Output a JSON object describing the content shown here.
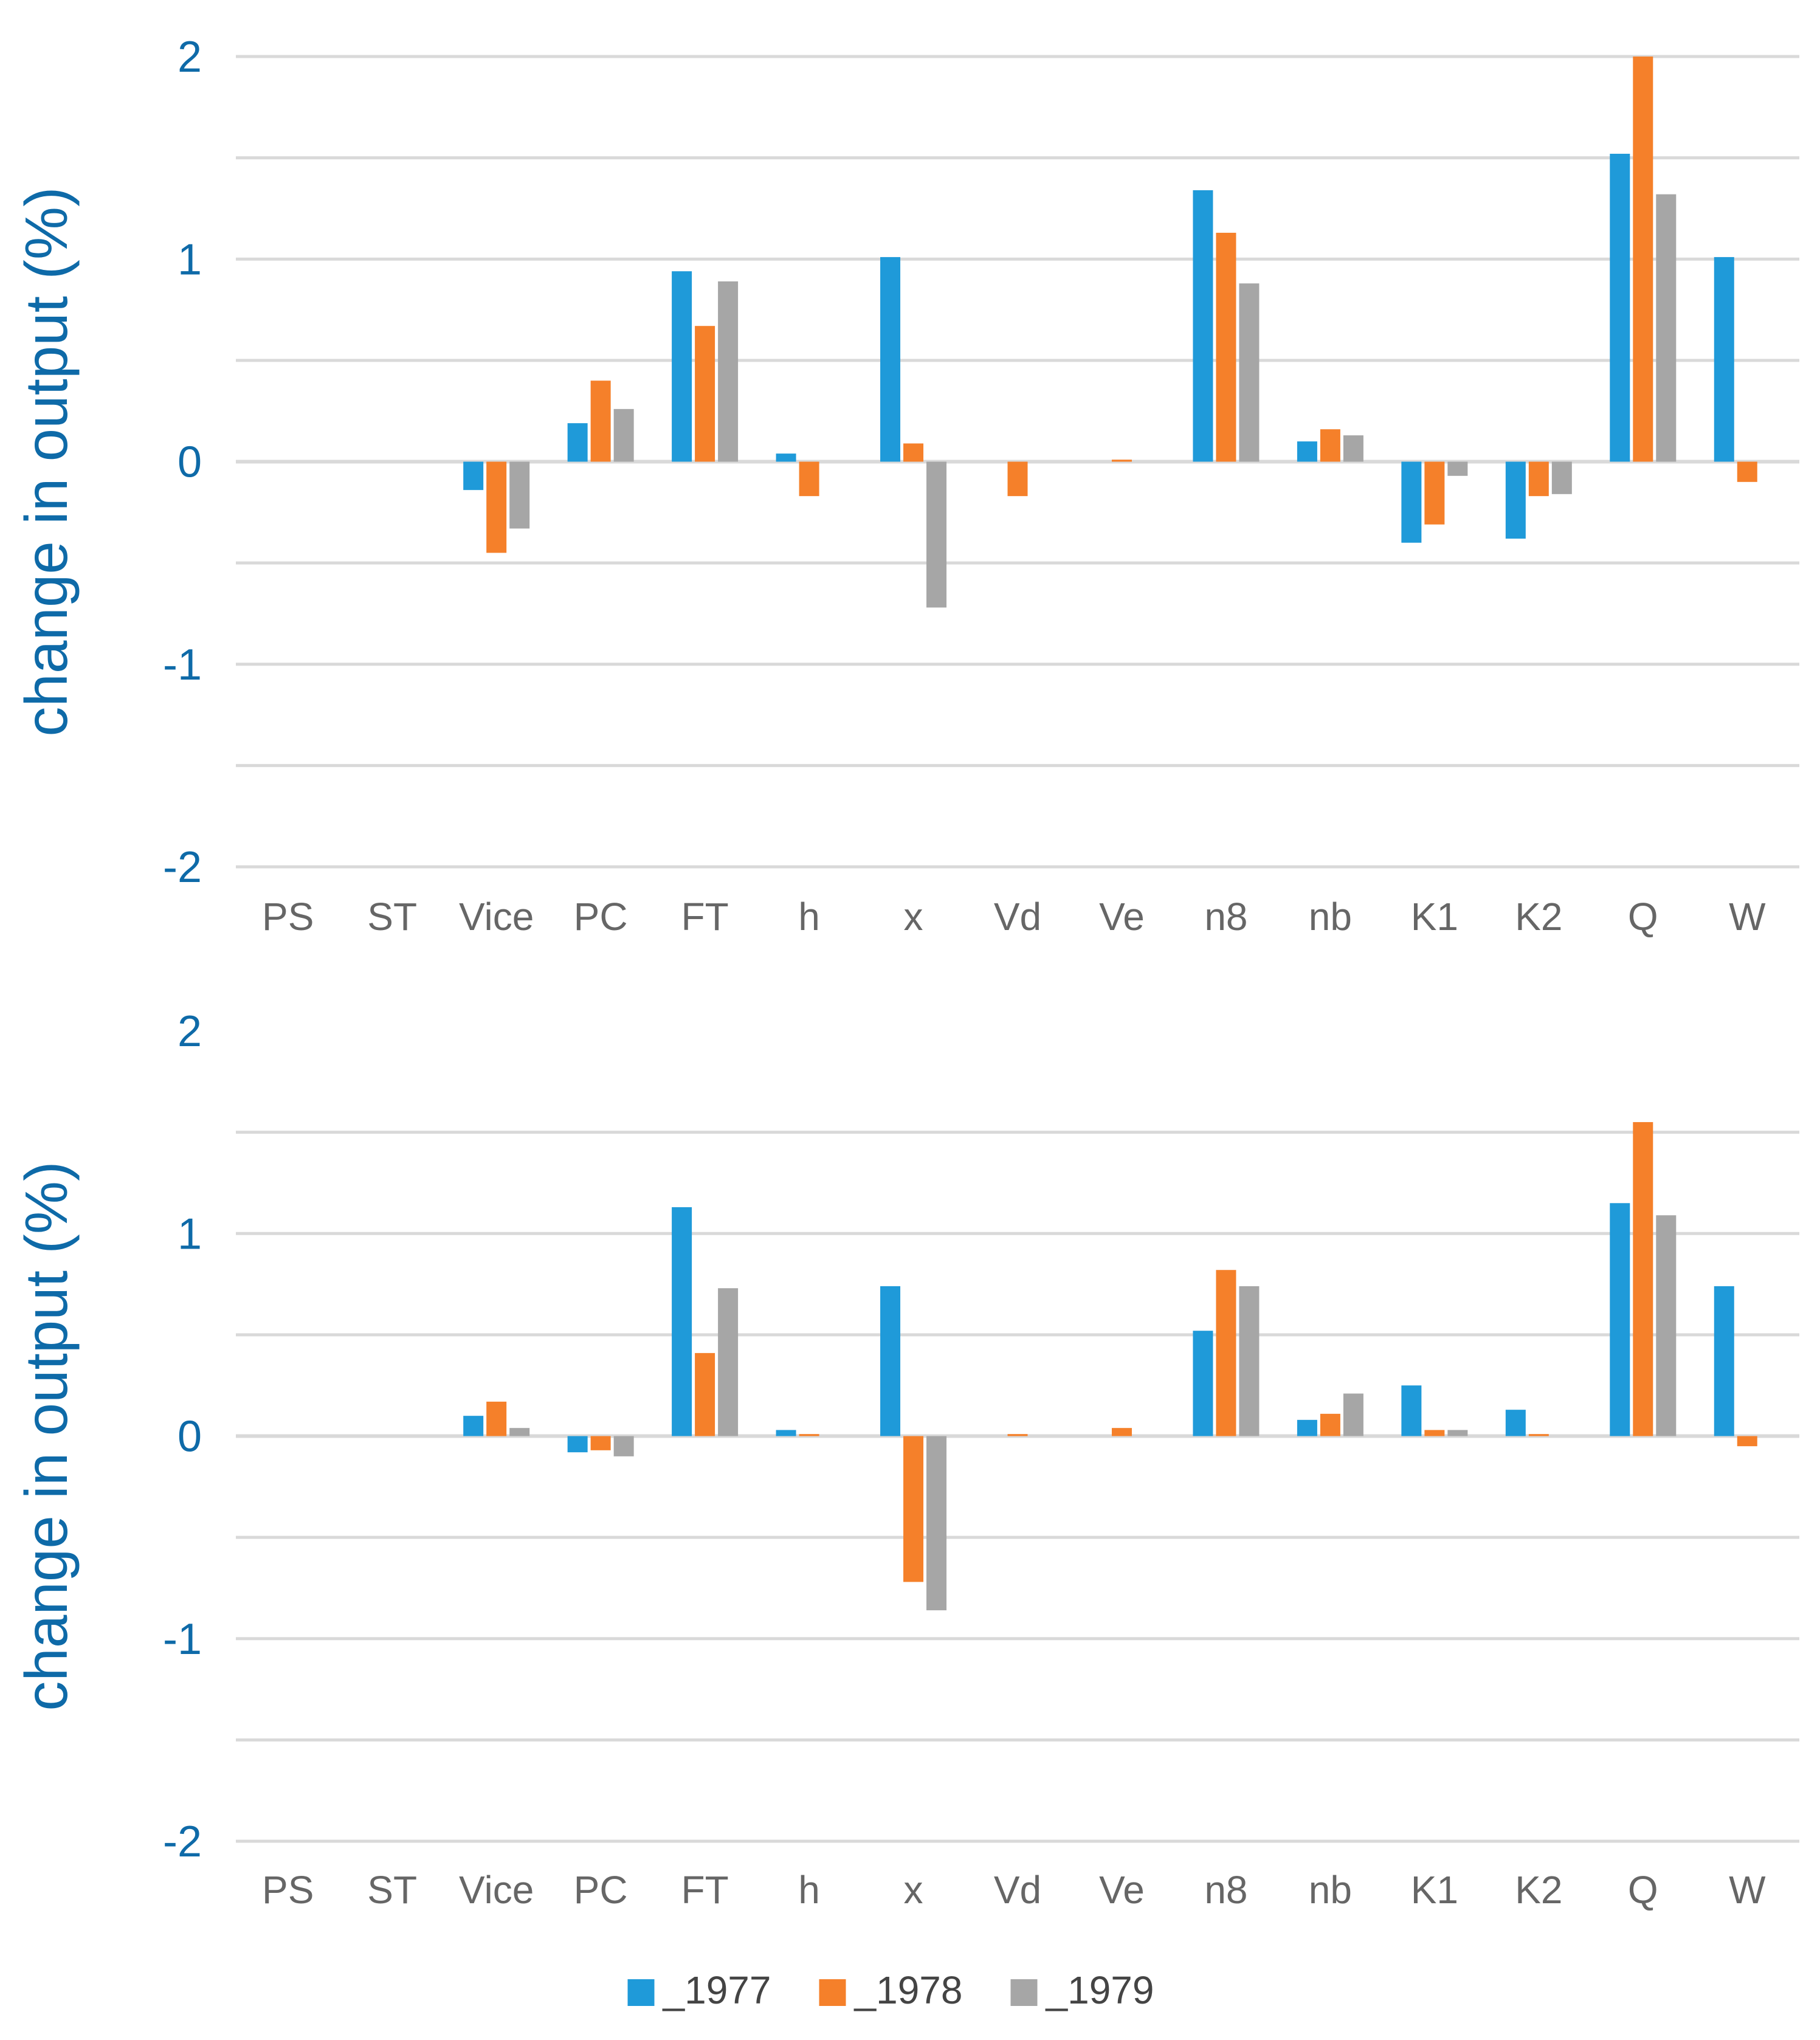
{
  "chart_data": [
    {
      "type": "bar",
      "panel": "top",
      "ylabel": "change in output (%)",
      "ylim": [
        -2,
        2
      ],
      "yticks": [
        2,
        1,
        0,
        -1,
        -2
      ],
      "ytick_labels": [
        "2",
        "1",
        "0",
        "-1",
        "-2"
      ],
      "gridlines_at": [
        2,
        1.5,
        1,
        0.5,
        0,
        -0.5,
        -1,
        -1.5,
        -2
      ],
      "categories": [
        "PS",
        "ST",
        "Vice",
        "PC",
        "FT",
        "h",
        "x",
        "Vd",
        "Ve",
        "n8",
        "nb",
        "K1",
        "K2",
        "Q",
        "W"
      ],
      "series": [
        {
          "name": "_1977",
          "color": "#1f9ad9",
          "values": [
            0,
            0,
            -0.14,
            0.19,
            0.94,
            0.04,
            1.01,
            0,
            0,
            1.34,
            0.1,
            -0.4,
            -0.38,
            1.52,
            1.01
          ]
        },
        {
          "name": "_1978",
          "color": "#f5802a",
          "values": [
            0,
            0,
            -0.45,
            0.4,
            0.67,
            -0.17,
            0.09,
            -0.17,
            0.01,
            1.13,
            0.16,
            -0.31,
            -0.17,
            2.0,
            -0.1
          ]
        },
        {
          "name": "_1979",
          "color": "#a6a6a6",
          "values": [
            0,
            0,
            -0.33,
            0.26,
            0.89,
            0,
            -0.72,
            0,
            0,
            0.88,
            0.13,
            -0.07,
            -0.16,
            1.32,
            0
          ]
        }
      ]
    },
    {
      "type": "bar",
      "panel": "bottom",
      "ylabel": "change in output (%)",
      "ylim": [
        -2,
        2
      ],
      "yticks": [
        2,
        1,
        0,
        -1,
        -2
      ],
      "ytick_labels": [
        "2",
        "1",
        "0",
        "-1",
        "-2"
      ],
      "gridlines_at": [
        1.5,
        1,
        0.5,
        0,
        -0.5,
        -1,
        -1.5,
        -2
      ],
      "categories": [
        "PS",
        "ST",
        "Vice",
        "PC",
        "FT",
        "h",
        "x",
        "Vd",
        "Ve",
        "n8",
        "nb",
        "K1",
        "K2",
        "Q",
        "W"
      ],
      "series": [
        {
          "name": "_1977",
          "color": "#1f9ad9",
          "values": [
            0,
            0,
            0.1,
            -0.08,
            1.13,
            0.03,
            0.74,
            0,
            0,
            0.52,
            0.08,
            0.25,
            0.13,
            1.15,
            0.74
          ]
        },
        {
          "name": "_1978",
          "color": "#f5802a",
          "values": [
            0,
            0,
            0.17,
            -0.07,
            0.41,
            0.01,
            -0.72,
            0.01,
            0.04,
            0.82,
            0.11,
            0.03,
            0.01,
            1.55,
            -0.05
          ]
        },
        {
          "name": "_1979",
          "color": "#a6a6a6",
          "values": [
            0,
            0,
            0.04,
            -0.1,
            0.73,
            0,
            -0.86,
            0,
            0,
            0.74,
            0.21,
            0.03,
            0,
            1.09,
            0
          ]
        }
      ]
    }
  ],
  "legend": {
    "placement": "bottom-center",
    "entries": [
      {
        "label": "_1977",
        "color": "#1f9ad9"
      },
      {
        "label": "_1978",
        "color": "#f5802a"
      },
      {
        "label": "_1979",
        "color": "#a6a6a6"
      }
    ]
  }
}
